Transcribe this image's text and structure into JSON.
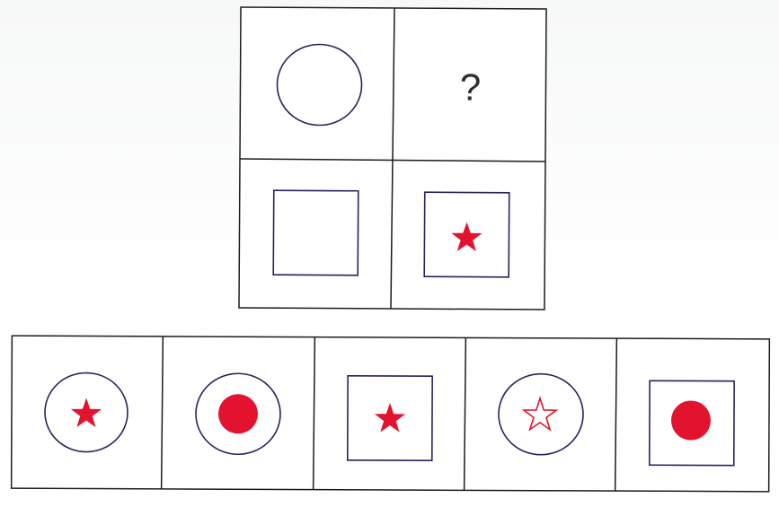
{
  "puzzle": {
    "matrix": {
      "cells": [
        {
          "position": "top-left",
          "shape": "circle",
          "inner": "none"
        },
        {
          "position": "top-right",
          "shape": "unknown",
          "text": "?"
        },
        {
          "position": "bottom-left",
          "shape": "square",
          "inner": "none"
        },
        {
          "position": "bottom-right",
          "shape": "square",
          "inner": "filled-star"
        }
      ]
    },
    "options": [
      {
        "outer": "circle",
        "inner": "filled-star"
      },
      {
        "outer": "circle",
        "inner": "filled-dot"
      },
      {
        "outer": "square",
        "inner": "filled-star"
      },
      {
        "outer": "circle",
        "inner": "outline-star"
      },
      {
        "outer": "square",
        "inner": "filled-dot"
      }
    ]
  },
  "colors": {
    "grid_line": "#1a1a1a",
    "shape_outline": "#2a2060",
    "accent_red": "#e3122f"
  }
}
